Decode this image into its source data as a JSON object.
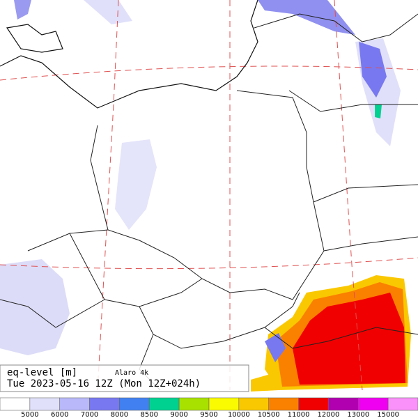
{
  "header": {
    "title": "eq-level [m]",
    "model": "Alaro 4k",
    "date": "Tue 2023-05-16 12Z (Mon 12Z+024h)"
  },
  "legend": {
    "colors": [
      "#ffffff",
      "#e0e0fa",
      "#b8b8fa",
      "#7878f0",
      "#4080f0",
      "#00d090",
      "#a8e000",
      "#fafa00",
      "#fac800",
      "#fa8000",
      "#f00000",
      "#b000b0",
      "#f000f0",
      "#fa90fa"
    ],
    "labels": [
      "5000",
      "6000",
      "7000",
      "8000",
      "8500",
      "9000",
      "9500",
      "10000",
      "10500",
      "11000",
      "12000",
      "13000",
      "15000"
    ]
  }
}
